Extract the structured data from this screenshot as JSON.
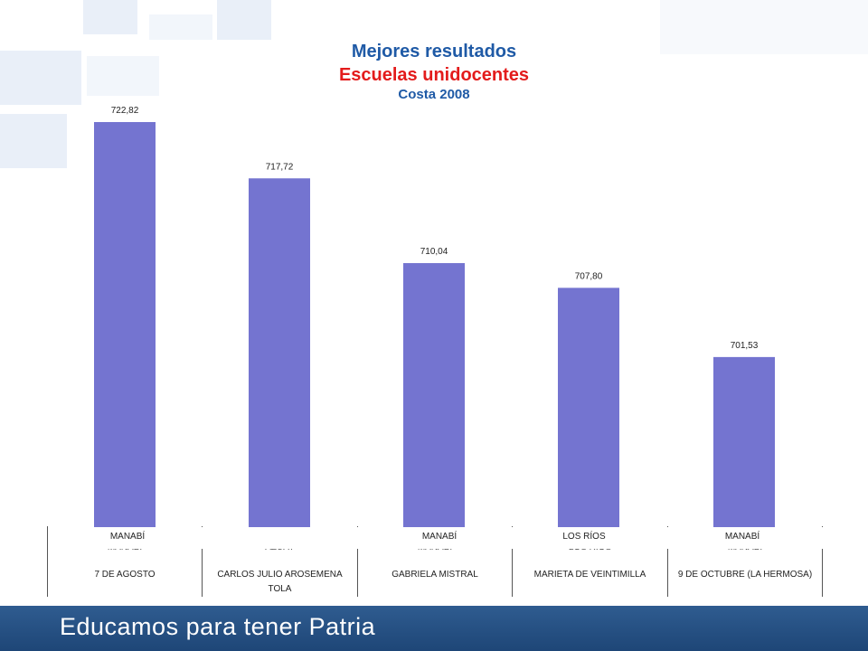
{
  "title": {
    "line1": "Mejores resultados",
    "line2": "Escuelas unidocentes",
    "line3": "Costa 2008"
  },
  "chart_data": {
    "type": "bar",
    "categories": [
      "7 DE AGOSTO",
      "CARLOS JULIO AROSEMENA TOLA",
      "GABRIELA MISTRAL",
      "MARIETA DE VEINTIMILLA",
      "9 DE OCTUBRE (LA HERMOSA)"
    ],
    "regions": [
      "MANABÍ",
      "AZUAY",
      "MANABÍ",
      "LOS RÍOS",
      "MANABÍ"
    ],
    "values": [
      722.82,
      717.72,
      710.04,
      707.8,
      701.53
    ],
    "value_labels": [
      "722,82",
      "717,72",
      "710,04",
      "707,80",
      "701,53"
    ],
    "bar_color": "#7474d0",
    "overlay_labels": [
      "MANABÍ",
      "",
      "MANABÍ",
      "LOS RÍOS",
      "MANABÍ"
    ]
  },
  "footer": {
    "text": "Educamos para tener Patria"
  }
}
